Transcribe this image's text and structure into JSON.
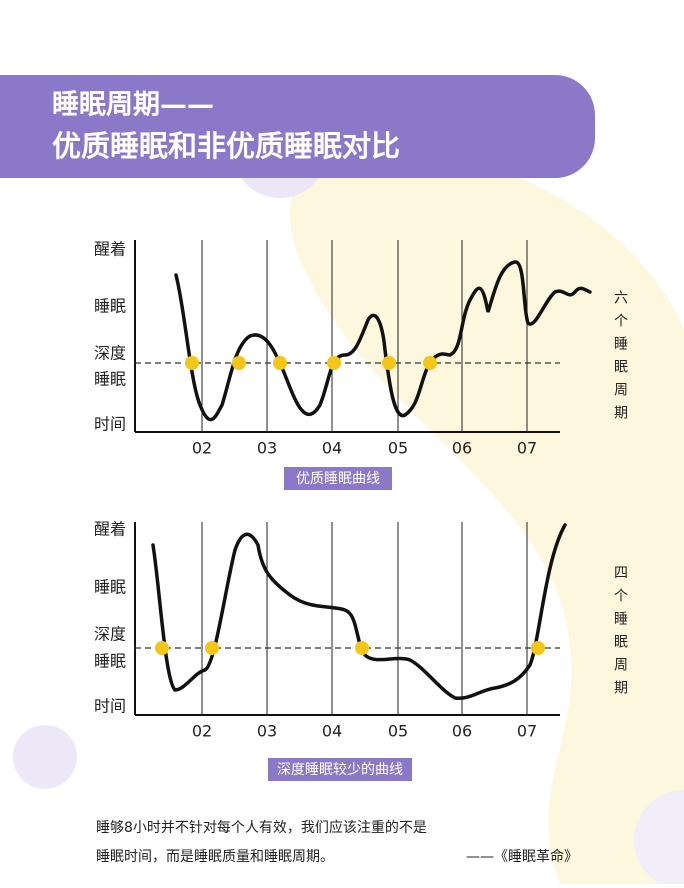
{
  "header": {
    "title_line1": "睡眠周期——",
    "title_line2": "优质睡眠和非优质睡眠对比"
  },
  "charts": [
    {
      "y_labels": [
        "醒着",
        "睡眠",
        "深度",
        "睡眠",
        "时间"
      ],
      "x_labels": [
        "02",
        "03",
        "04",
        "05",
        "06",
        "07"
      ],
      "caption": "优质睡眠曲线",
      "side_note": "六个睡眠周期"
    },
    {
      "y_labels": [
        "醒着",
        "睡眠",
        "深度",
        "睡眠",
        "时间"
      ],
      "x_labels": [
        "02",
        "03",
        "04",
        "05",
        "06",
        "07"
      ],
      "caption": "深度睡眠较少的曲线",
      "side_note": "四个睡眠周期"
    }
  ],
  "footer": {
    "line1": "睡够8小时并不针对每个人有效，我们应该注重的不是",
    "line2": "睡眠时间，而是睡眠质量和睡眠周期。",
    "source": "——《睡眠革命》"
  }
}
